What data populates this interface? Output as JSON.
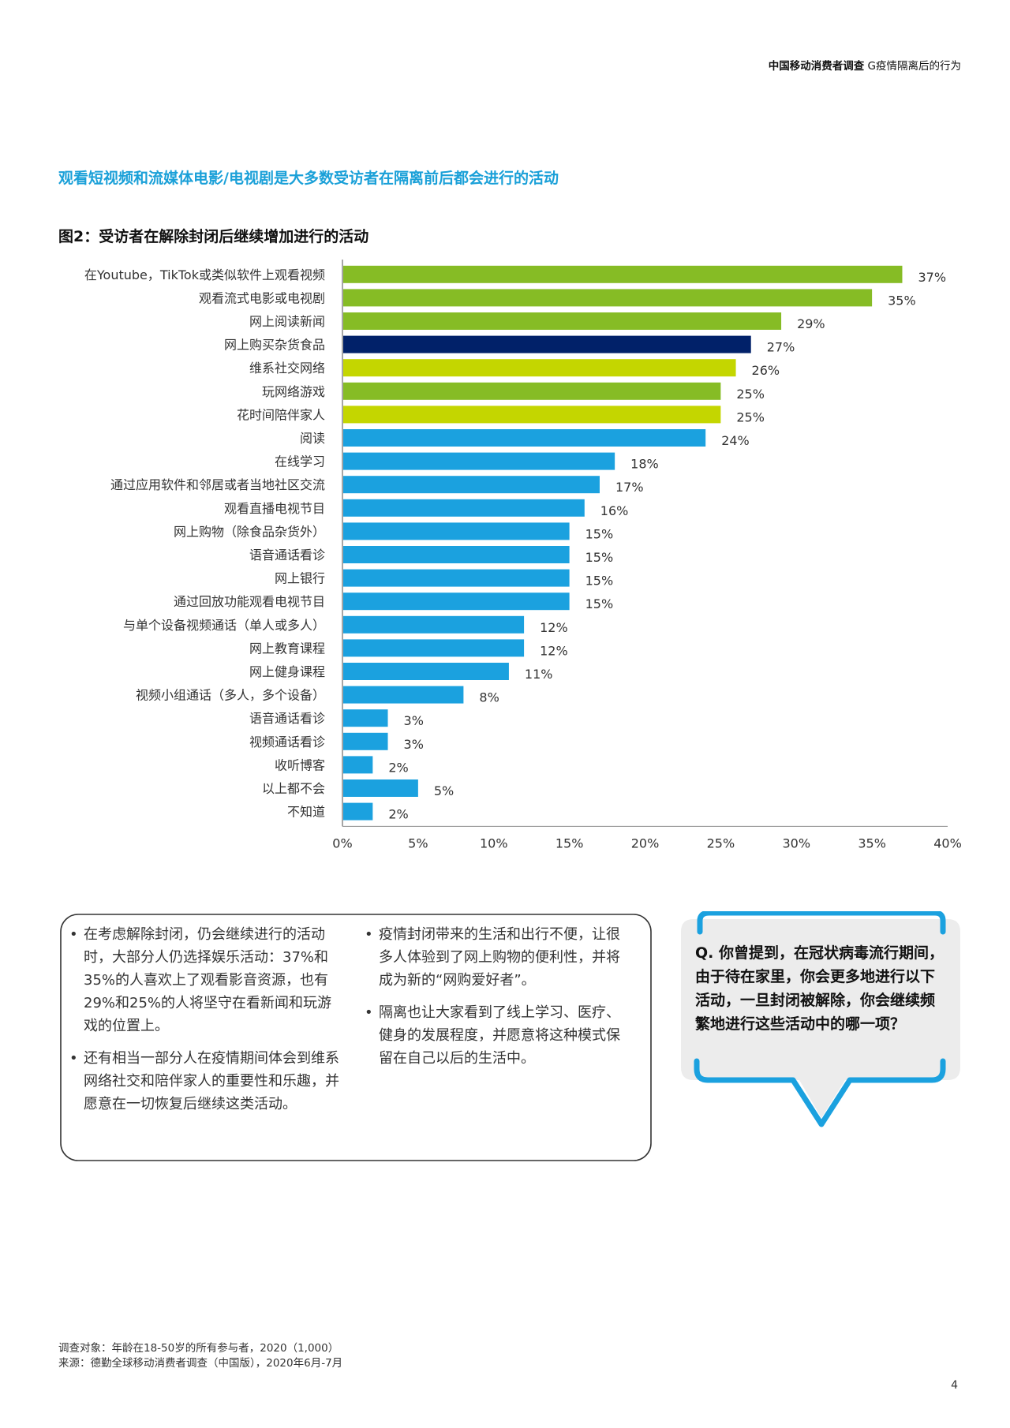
{
  "header": {
    "title_bold": "中国移动消费者调查",
    "title_rest": " G疫情隔离后的行为"
  },
  "section_title": "观看短视频和流媒体电影/电视剧是大多数受访者在隔离前后都会进行的活动",
  "figure_title": "图2：受访者在解除封闭后继续增加进行的活动",
  "chart_data": {
    "type": "bar",
    "orientation": "horizontal",
    "title": "图2：受访者在解除封闭后继续增加进行的活动",
    "categories": [
      "在Youtube，TikTok或类似软件上观看视频",
      "观看流式电影或电视剧",
      "网上阅读新闻",
      "网上购买杂货食品",
      "维系社交网络",
      "玩网络游戏",
      "花时间陪伴家人",
      "阅读",
      "在线学习",
      "通过应用软件和邻居或者当地社区交流",
      "观看直播电视节目",
      "网上购物（除食品杂货外）",
      "语音通话看诊",
      "网上银行",
      "通过回放功能观看电视节目",
      "与单个设备视频通话（单人或多人）",
      "网上教育课程",
      "网上健身课程",
      "视频小组通话（多人，多个设备）",
      "语音通话看诊",
      "视频通话看诊",
      "收听博客",
      "以上都不会",
      "不知道"
    ],
    "values": [
      37,
      35,
      29,
      27,
      26,
      25,
      25,
      24,
      18,
      17,
      16,
      15,
      15,
      15,
      15,
      12,
      12,
      11,
      8,
      3,
      3,
      2,
      5,
      2
    ],
    "value_labels": [
      "37%",
      "35%",
      "29%",
      "27%",
      "26%",
      "25%",
      "25%",
      "24%",
      "18%",
      "17%",
      "16%",
      "15%",
      "15%",
      "15%",
      "15%",
      "12%",
      "12%",
      "11%",
      "8%",
      "3%",
      "3%",
      "2%",
      "5%",
      "2%"
    ],
    "bar_colors": [
      "#86bc25",
      "#86bc25",
      "#86bc25",
      "#012169",
      "#c4d600",
      "#86bc25",
      "#c4d600",
      "#1ba1df",
      "#1ba1df",
      "#1ba1df",
      "#1ba1df",
      "#1ba1df",
      "#1ba1df",
      "#1ba1df",
      "#1ba1df",
      "#1ba1df",
      "#1ba1df",
      "#1ba1df",
      "#1ba1df",
      "#1ba1df",
      "#1ba1df",
      "#1ba1df",
      "#1ba1df",
      "#1ba1df"
    ],
    "xlim": [
      0,
      40
    ],
    "xticks": [
      0,
      5,
      10,
      15,
      20,
      25,
      30,
      35,
      40
    ],
    "xtick_labels": [
      "0%",
      "5%",
      "10%",
      "15%",
      "20%",
      "25%",
      "30%",
      "35%",
      "40%"
    ],
    "xlabel": "",
    "ylabel": "",
    "grid": false
  },
  "textbox": {
    "col1": [
      "在考虑解除封闭，仍会继续进行的活动时，大部分人仍选择娱乐活动：37%和35%的人喜欢上了观看影音资源，也有29%和25%的人将坚守在看新闻和玩游戏的位置上。",
      "还有相当一部分人在疫情期间体会到维系网络社交和陪伴家人的重要性和乐趣，并愿意在一切恢复后继续这类活动。"
    ],
    "col2": [
      "疫情封闭带来的生活和出行不便，让很多人体验到了网上购物的便利性，并将成为新的“网购爱好者”。",
      "隔离也让大家看到了线上学习、医疗、健身的发展程度，并愿意将这种模式保留在自己以后的生活中。"
    ]
  },
  "question": "Q. 你曾提到，在冠状病毒流行期间，由于待在家里，你会更多地进行以下活动，一旦封闭被解除，你会继续频繁地进行这些活动中的哪一项？",
  "footnotes": {
    "survey": "调查对象：年龄在18-50岁的所有参与者，2020（1,000）",
    "source": "来源：德勤全球移动消费者调查（中国版），2020年6月-7月"
  },
  "page_number": "4",
  "colors": {
    "accent_blue": "#1aa0d8",
    "bubble_border": "#1ba1df",
    "bubble_fill": "#ececec"
  }
}
